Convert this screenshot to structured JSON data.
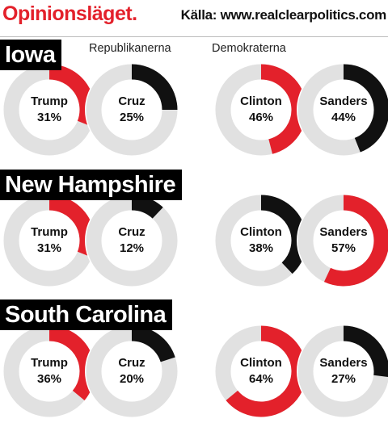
{
  "title": "Opinionsläget.",
  "source": "Källa: www.realclearpolitics.com",
  "party_labels": {
    "republicans": "Republikanerna",
    "democrats": "Demokraterna"
  },
  "colors": {
    "title": "#e3212b",
    "red": "#e3212b",
    "black": "#111111",
    "track": "#e1e1e1",
    "state_banner": "#000000"
  },
  "chart_data": {
    "type": "donut",
    "title": "Opinionsläget.",
    "source": "Källa: www.realclearpolitics.com",
    "groups": [
      "Republikanerna",
      "Demokraterna"
    ],
    "states": [
      {
        "state": "Iowa",
        "candidates": [
          {
            "name": "Trump",
            "party": "Republikanerna",
            "value": 31,
            "label": "31%",
            "color": "#e3212b"
          },
          {
            "name": "Cruz",
            "party": "Republikanerna",
            "value": 25,
            "label": "25%",
            "color": "#111111"
          },
          {
            "name": "Clinton",
            "party": "Demokraterna",
            "value": 46,
            "label": "46%",
            "color": "#e3212b"
          },
          {
            "name": "Sanders",
            "party": "Demokraterna",
            "value": 44,
            "label": "44%",
            "color": "#111111"
          }
        ]
      },
      {
        "state": "New Hampshire",
        "candidates": [
          {
            "name": "Trump",
            "party": "Republikanerna",
            "value": 31,
            "label": "31%",
            "color": "#e3212b"
          },
          {
            "name": "Cruz",
            "party": "Republikanerna",
            "value": 12,
            "label": "12%",
            "color": "#111111"
          },
          {
            "name": "Clinton",
            "party": "Demokraterna",
            "value": 38,
            "label": "38%",
            "color": "#111111"
          },
          {
            "name": "Sanders",
            "party": "Demokraterna",
            "value": 57,
            "label": "57%",
            "color": "#e3212b"
          }
        ]
      },
      {
        "state": "South Carolina",
        "candidates": [
          {
            "name": "Trump",
            "party": "Republikanerna",
            "value": 36,
            "label": "36%",
            "color": "#e3212b"
          },
          {
            "name": "Cruz",
            "party": "Republikanerna",
            "value": 20,
            "label": "20%",
            "color": "#111111"
          },
          {
            "name": "Clinton",
            "party": "Demokraterna",
            "value": 64,
            "label": "64%",
            "color": "#e3212b"
          },
          {
            "name": "Sanders",
            "party": "Demokraterna",
            "value": 27,
            "label": "27%",
            "color": "#111111"
          }
        ]
      }
    ]
  }
}
